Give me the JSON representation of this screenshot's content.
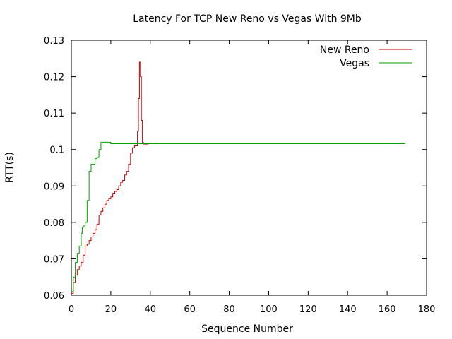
{
  "chart_data": {
    "type": "line",
    "title": "Latency For TCP New Reno vs Vegas With 9Mb",
    "xlabel": "Sequence Number",
    "ylabel": "RTT(s)",
    "xlim": [
      0,
      180
    ],
    "ylim": [
      0.06,
      0.13
    ],
    "xticks": [
      0,
      20,
      40,
      60,
      80,
      100,
      120,
      140,
      160,
      180
    ],
    "xtick_labels": [
      "0",
      "20",
      "40",
      "60",
      "80",
      "100",
      "120",
      "140",
      "160",
      "180"
    ],
    "yticks": [
      0.06,
      0.07,
      0.08,
      0.09,
      0.1,
      0.11,
      0.12,
      0.13
    ],
    "ytick_labels": [
      "0.06",
      "0.07",
      "0.08",
      "0.09",
      "0.1",
      "0.11",
      "0.12",
      "0.13"
    ],
    "grid": false,
    "legend_position": "top-right",
    "series": [
      {
        "name": "New Reno",
        "color": "#cc0000",
        "x": [
          0,
          1,
          2,
          3,
          4,
          5,
          6,
          7,
          8,
          9,
          10,
          11,
          12,
          13,
          14,
          15,
          16,
          17,
          18,
          19,
          20,
          21,
          22,
          23,
          24,
          25,
          26,
          27,
          28,
          29,
          30,
          31,
          32,
          33,
          33.5,
          34,
          34.5,
          35,
          35.5,
          36,
          36.5,
          37,
          38,
          39
        ],
        "y": [
          0.0605,
          0.0635,
          0.0655,
          0.067,
          0.068,
          0.069,
          0.071,
          0.0735,
          0.074,
          0.075,
          0.076,
          0.077,
          0.078,
          0.0795,
          0.082,
          0.083,
          0.084,
          0.085,
          0.086,
          0.0865,
          0.087,
          0.088,
          0.0885,
          0.089,
          0.09,
          0.091,
          0.0915,
          0.093,
          0.094,
          0.096,
          0.099,
          0.1005,
          0.101,
          0.101,
          0.105,
          0.114,
          0.124,
          0.12,
          0.108,
          0.102,
          0.1015,
          0.1015,
          0.1015,
          0.1015
        ]
      },
      {
        "name": "Vegas",
        "color": "#00a000",
        "x": [
          0,
          1,
          2,
          3,
          4,
          5,
          5.5,
          6,
          7,
          7.5,
          8,
          9,
          10,
          11,
          12,
          13,
          14,
          15,
          16,
          17,
          18,
          19,
          20,
          30,
          40,
          60,
          80,
          100,
          120,
          140,
          160,
          169
        ],
        "y": [
          0.061,
          0.065,
          0.069,
          0.0715,
          0.0735,
          0.077,
          0.0785,
          0.079,
          0.08,
          0.08,
          0.086,
          0.094,
          0.096,
          0.096,
          0.0975,
          0.0978,
          0.1,
          0.102,
          0.102,
          0.102,
          0.102,
          0.102,
          0.1016,
          0.1016,
          0.1016,
          0.1016,
          0.1016,
          0.1016,
          0.1016,
          0.1016,
          0.1016,
          0.1016
        ]
      }
    ]
  }
}
